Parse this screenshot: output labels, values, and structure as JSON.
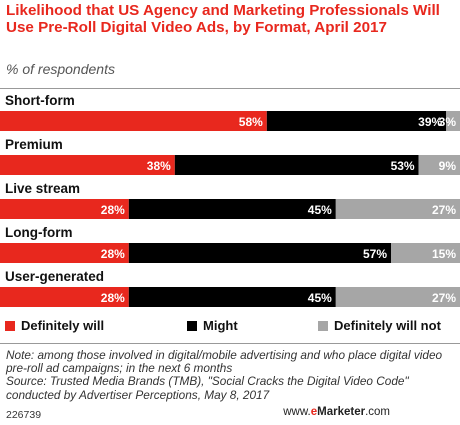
{
  "chart_data": {
    "type": "bar",
    "orientation": "horizontal",
    "stacked": true,
    "title": "Likelihood that US Agency and Marketing Professionals Will Use Pre-Roll Digital Video Ads, by Format, April 2017",
    "subtitle": "% of respondents",
    "categories": [
      "Short-form",
      "Premium",
      "Live stream",
      "Long-form",
      "User-generated"
    ],
    "series": [
      {
        "name": "Definitely will",
        "color": "#e8281e",
        "values": [
          58,
          38,
          28,
          28,
          28
        ]
      },
      {
        "name": "Might",
        "color": "#000000",
        "values": [
          39,
          53,
          45,
          57,
          45
        ]
      },
      {
        "name": "Definitely will not",
        "color": "#a6a6a6",
        "values": [
          3,
          9,
          27,
          15,
          27
        ]
      }
    ],
    "value_suffix": "%",
    "xlim": [
      0,
      100
    ],
    "legend_position": "bottom",
    "grid": false
  },
  "notes": {
    "note": "Note: among those involved in digital/mobile advertising and who place digital video pre-roll ad campaigns; in the next 6 months",
    "source": "Source: Trusted Media Brands (TMB), \"Social Cracks the Digital Video Code\" conducted by Advertiser Perceptions, May 8, 2017"
  },
  "footer": {
    "code": "226739",
    "brand_prefix": "www.",
    "brand_e": "e",
    "brand_marketer": "Marketer",
    "brand_suffix": ".com"
  }
}
